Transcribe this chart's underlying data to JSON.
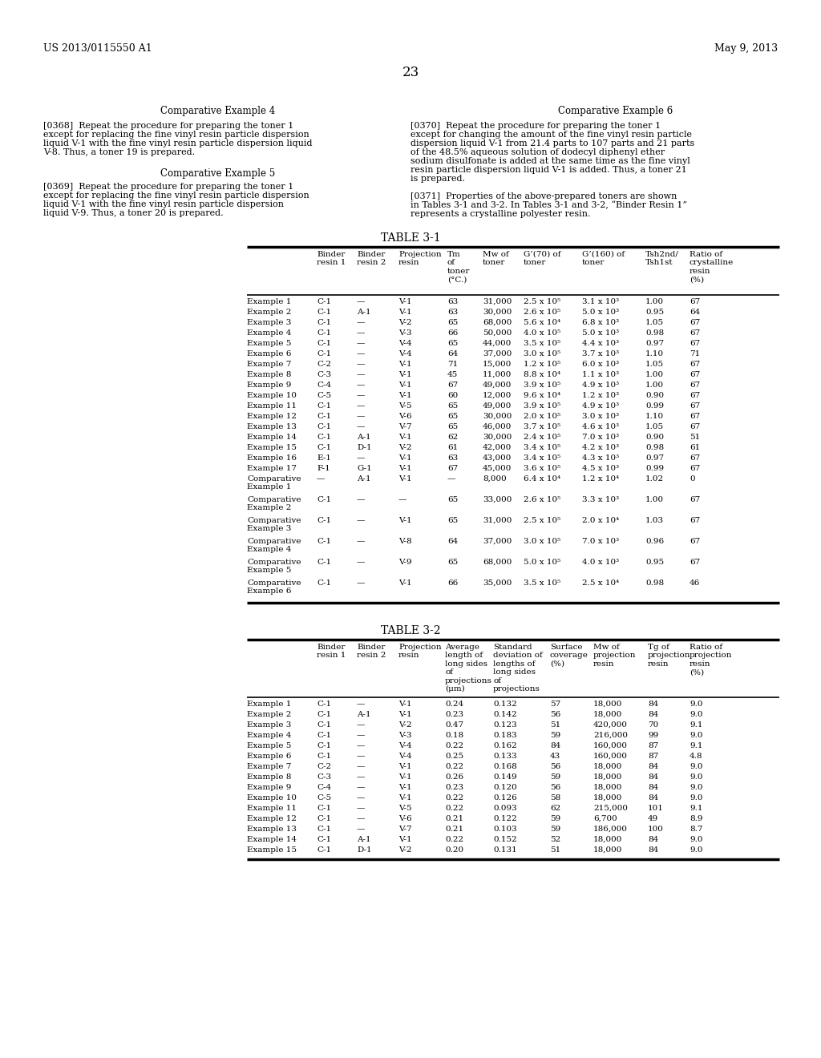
{
  "header_left": "US 2013/0115550 A1",
  "header_right": "May 9, 2013",
  "page_num": "23",
  "comp_ex4_title": "Comparative Example 4",
  "comp_ex5_title": "Comparative Example 5",
  "comp_ex6_title": "Comparative Example 6",
  "table31_title": "TABLE 3-1",
  "table32_title": "TABLE 3-2",
  "table31_rows": [
    [
      "Example 1",
      "C-1",
      "—",
      "V-1",
      "63",
      "31,000",
      "2.5 x 10⁵",
      "3.1 x 10³",
      "1.00",
      "67"
    ],
    [
      "Example 2",
      "C-1",
      "A-1",
      "V-1",
      "63",
      "30,000",
      "2.6 x 10⁵",
      "5.0 x 10³",
      "0.95",
      "64"
    ],
    [
      "Example 3",
      "C-1",
      "—",
      "V-2",
      "65",
      "68,000",
      "5.6 x 10⁴",
      "6.8 x 10³",
      "1.05",
      "67"
    ],
    [
      "Example 4",
      "C-1",
      "—",
      "V-3",
      "66",
      "50,000",
      "4.0 x 10⁵",
      "5.0 x 10³",
      "0.98",
      "67"
    ],
    [
      "Example 5",
      "C-1",
      "—",
      "V-4",
      "65",
      "44,000",
      "3.5 x 10⁵",
      "4.4 x 10³",
      "0.97",
      "67"
    ],
    [
      "Example 6",
      "C-1",
      "—",
      "V-4",
      "64",
      "37,000",
      "3.0 x 10⁵",
      "3.7 x 10³",
      "1.10",
      "71"
    ],
    [
      "Example 7",
      "C-2",
      "—",
      "V-1",
      "71",
      "15,000",
      "1.2 x 10⁵",
      "6.0 x 10³",
      "1.05",
      "67"
    ],
    [
      "Example 8",
      "C-3",
      "—",
      "V-1",
      "45",
      "11,000",
      "8.8 x 10⁴",
      "1.1 x 10³",
      "1.00",
      "67"
    ],
    [
      "Example 9",
      "C-4",
      "—",
      "V-1",
      "67",
      "49,000",
      "3.9 x 10⁵",
      "4.9 x 10³",
      "1.00",
      "67"
    ],
    [
      "Example 10",
      "C-5",
      "—",
      "V-1",
      "60",
      "12,000",
      "9.6 x 10⁴",
      "1.2 x 10³",
      "0.90",
      "67"
    ],
    [
      "Example 11",
      "C-1",
      "—",
      "V-5",
      "65",
      "49,000",
      "3.9 x 10⁵",
      "4.9 x 10³",
      "0.99",
      "67"
    ],
    [
      "Example 12",
      "C-1",
      "—",
      "V-6",
      "65",
      "30,000",
      "2.0 x 10⁵",
      "3.0 x 10³",
      "1.10",
      "67"
    ],
    [
      "Example 13",
      "C-1",
      "—",
      "V-7",
      "65",
      "46,000",
      "3.7 x 10⁵",
      "4.6 x 10³",
      "1.05",
      "67"
    ],
    [
      "Example 14",
      "C-1",
      "A-1",
      "V-1",
      "62",
      "30,000",
      "2.4 x 10⁵",
      "7.0 x 10³",
      "0.90",
      "51"
    ],
    [
      "Example 15",
      "C-1",
      "D-1",
      "V-2",
      "61",
      "42,000",
      "3.4 x 10⁵",
      "4.2 x 10³",
      "0.98",
      "61"
    ],
    [
      "Example 16",
      "E-1",
      "—",
      "V-1",
      "63",
      "43,000",
      "3.4 x 10⁵",
      "4.3 x 10³",
      "0.97",
      "67"
    ],
    [
      "Example 17",
      "F-1",
      "G-1",
      "V-1",
      "67",
      "45,000",
      "3.6 x 10⁵",
      "4.5 x 10³",
      "0.99",
      "67"
    ],
    [
      "Comparative\nExample 1",
      "—",
      "A-1",
      "V-1",
      "—",
      "8,000",
      "6.4 x 10⁴",
      "1.2 x 10⁴",
      "1.02",
      "0"
    ],
    [
      "Comparative\nExample 2",
      "C-1",
      "—",
      "—",
      "65",
      "33,000",
      "2.6 x 10⁵",
      "3.3 x 10³",
      "1.00",
      "67"
    ],
    [
      "Comparative\nExample 3",
      "C-1",
      "—",
      "V-1",
      "65",
      "31,000",
      "2.5 x 10⁵",
      "2.0 x 10⁴",
      "1.03",
      "67"
    ],
    [
      "Comparative\nExample 4",
      "C-1",
      "—",
      "V-8",
      "64",
      "37,000",
      "3.0 x 10⁵",
      "7.0 x 10³",
      "0.96",
      "67"
    ],
    [
      "Comparative\nExample 5",
      "C-1",
      "—",
      "V-9",
      "65",
      "68,000",
      "5.0 x 10⁵",
      "4.0 x 10³",
      "0.95",
      "67"
    ],
    [
      "Comparative\nExample 6",
      "C-1",
      "—",
      "V-1",
      "66",
      "35,000",
      "3.5 x 10⁵",
      "2.5 x 10⁴",
      "0.98",
      "46"
    ]
  ],
  "table32_rows": [
    [
      "Example 1",
      "C-1",
      "—",
      "V-1",
      "0.24",
      "0.132",
      "57",
      "18,000",
      "84",
      "9.0"
    ],
    [
      "Example 2",
      "C-1",
      "A-1",
      "V-1",
      "0.23",
      "0.142",
      "56",
      "18,000",
      "84",
      "9.0"
    ],
    [
      "Example 3",
      "C-1",
      "—",
      "V-2",
      "0.47",
      "0.123",
      "51",
      "420,000",
      "70",
      "9.1"
    ],
    [
      "Example 4",
      "C-1",
      "—",
      "V-3",
      "0.18",
      "0.183",
      "59",
      "216,000",
      "99",
      "9.0"
    ],
    [
      "Example 5",
      "C-1",
      "—",
      "V-4",
      "0.22",
      "0.162",
      "84",
      "160,000",
      "87",
      "9.1"
    ],
    [
      "Example 6",
      "C-1",
      "—",
      "V-4",
      "0.25",
      "0.133",
      "43",
      "160,000",
      "87",
      "4.8"
    ],
    [
      "Example 7",
      "C-2",
      "—",
      "V-1",
      "0.22",
      "0.168",
      "56",
      "18,000",
      "84",
      "9.0"
    ],
    [
      "Example 8",
      "C-3",
      "—",
      "V-1",
      "0.26",
      "0.149",
      "59",
      "18,000",
      "84",
      "9.0"
    ],
    [
      "Example 9",
      "C-4",
      "—",
      "V-1",
      "0.23",
      "0.120",
      "56",
      "18,000",
      "84",
      "9.0"
    ],
    [
      "Example 10",
      "C-5",
      "—",
      "V-1",
      "0.22",
      "0.126",
      "58",
      "18,000",
      "84",
      "9.0"
    ],
    [
      "Example 11",
      "C-1",
      "—",
      "V-5",
      "0.22",
      "0.093",
      "62",
      "215,000",
      "101",
      "9.1"
    ],
    [
      "Example 12",
      "C-1",
      "—",
      "V-6",
      "0.21",
      "0.122",
      "59",
      "6,700",
      "49",
      "8.9"
    ],
    [
      "Example 13",
      "C-1",
      "—",
      "V-7",
      "0.21",
      "0.103",
      "59",
      "186,000",
      "100",
      "8.7"
    ],
    [
      "Example 14",
      "C-1",
      "A-1",
      "V-1",
      "0.22",
      "0.152",
      "52",
      "18,000",
      "84",
      "9.0"
    ],
    [
      "Example 15",
      "C-1",
      "D-1",
      "V-2",
      "0.20",
      "0.131",
      "51",
      "18,000",
      "84",
      "9.0"
    ]
  ]
}
